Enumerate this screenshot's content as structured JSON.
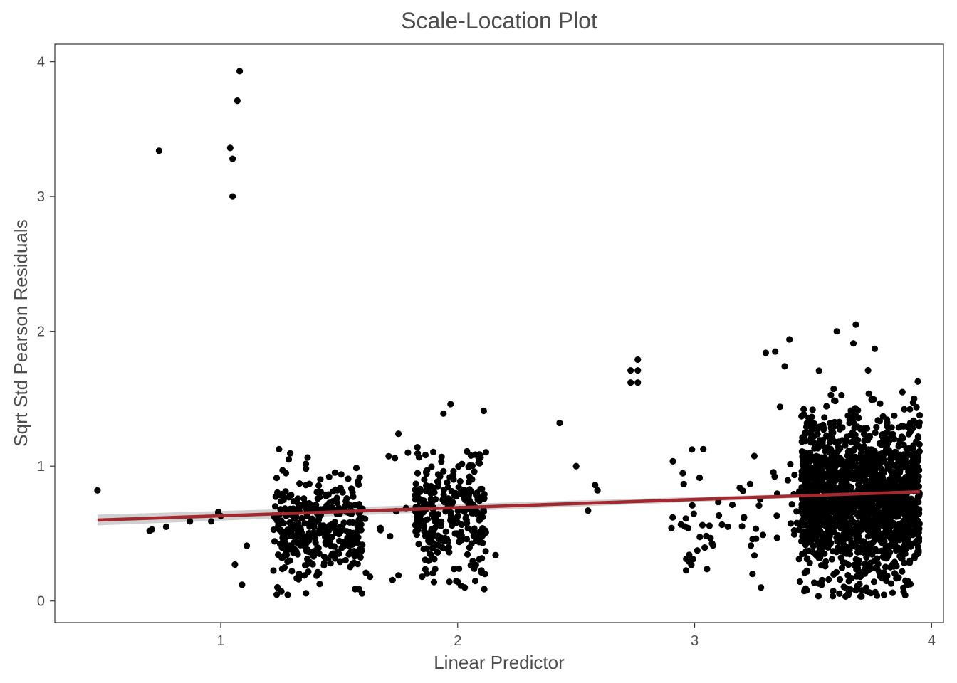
{
  "chart_data": {
    "type": "scatter",
    "title": "Scale-Location Plot",
    "xlabel": "Linear Predictor",
    "ylabel": "Sqrt Std Pearson Residuals",
    "xlim": [
      0.3,
      4.05
    ],
    "ylim": [
      -0.16,
      4.13
    ],
    "x_ticks": [
      1,
      2,
      3,
      4
    ],
    "x_tick_labels": [
      "1",
      "2",
      "3",
      "4"
    ],
    "y_ticks": [
      0,
      1,
      2,
      3,
      4
    ],
    "y_tick_labels": [
      "0",
      "1",
      "2",
      "3",
      "4"
    ],
    "grid": false,
    "point_color": "#000000",
    "series": [
      {
        "type": "points",
        "explicit_points": [
          [
            0.48,
            0.82
          ],
          [
            0.74,
            3.34
          ],
          [
            1.04,
            3.36
          ],
          [
            1.05,
            3.28
          ],
          [
            1.05,
            3.0
          ],
          [
            1.07,
            3.71
          ],
          [
            1.08,
            3.93
          ],
          [
            1.06,
            0.27
          ],
          [
            1.09,
            0.12
          ],
          [
            1.11,
            0.41
          ],
          [
            2.43,
            1.32
          ],
          [
            2.5,
            1.0
          ],
          [
            2.55,
            0.67
          ],
          [
            2.58,
            0.86
          ],
          [
            2.59,
            0.82
          ],
          [
            2.73,
            1.71
          ],
          [
            2.73,
            1.62
          ],
          [
            2.76,
            1.79
          ],
          [
            2.76,
            1.71
          ],
          [
            2.76,
            1.62
          ],
          [
            3.3,
            1.84
          ],
          [
            3.34,
            1.85
          ],
          [
            3.36,
            1.44
          ],
          [
            3.38,
            1.74
          ],
          [
            3.4,
            1.94
          ],
          [
            3.6,
            2.0
          ],
          [
            3.68,
            2.05
          ],
          [
            3.67,
            1.91
          ],
          [
            3.76,
            1.87
          ],
          [
            3.28,
            0.1
          ],
          [
            0.7,
            0.52
          ],
          [
            0.71,
            0.53
          ],
          [
            0.77,
            0.55
          ],
          [
            0.87,
            0.59
          ],
          [
            0.96,
            0.59
          ],
          [
            0.99,
            0.65
          ],
          [
            1.0,
            0.63
          ],
          [
            0.99,
            0.66
          ],
          [
            1.75,
            1.24
          ],
          [
            1.79,
            1.1
          ],
          [
            1.83,
            1.14
          ],
          [
            1.94,
            1.39
          ],
          [
            1.97,
            1.46
          ],
          [
            2.11,
            1.41
          ],
          [
            2.16,
            0.34
          ],
          [
            2.03,
            0.1
          ],
          [
            1.9,
            0.14
          ],
          [
            1.85,
            0.18
          ],
          [
            1.75,
            0.19
          ],
          [
            1.63,
            0.18
          ]
        ],
        "clusters": [
          {
            "x_range": [
              1.22,
              1.6
            ],
            "y_center": 0.55,
            "y_spread": 0.2,
            "y_min": 0.04,
            "y_max": 1.13,
            "count": 380,
            "seed": 11
          },
          {
            "x_range": [
              1.82,
              2.12
            ],
            "y_center": 0.65,
            "y_spread": 0.2,
            "y_min": 0.08,
            "y_max": 1.12,
            "count": 300,
            "seed": 23
          },
          {
            "x_range": [
              1.6,
              1.9
            ],
            "y_center": 0.6,
            "y_spread": 0.3,
            "y_min": 0.15,
            "y_max": 1.1,
            "count": 18,
            "seed": 29
          },
          {
            "x_range": [
              2.9,
              3.45
            ],
            "y_center": 0.6,
            "y_spread": 0.25,
            "y_min": 0.1,
            "y_max": 1.4,
            "count": 70,
            "seed": 31
          },
          {
            "x_range": [
              3.45,
              3.95
            ],
            "y_center": 0.78,
            "y_spread": 0.3,
            "y_min": 0.03,
            "y_max": 1.75,
            "count": 1700,
            "seed": 47
          }
        ]
      },
      {
        "type": "smooth",
        "color": "#a4282f",
        "band_color": "#c8c8c8",
        "x": [
          0.48,
          3.95
        ],
        "y": [
          0.6,
          0.81
        ],
        "band_halfwidth": [
          0.04,
          0.01
        ]
      }
    ]
  }
}
